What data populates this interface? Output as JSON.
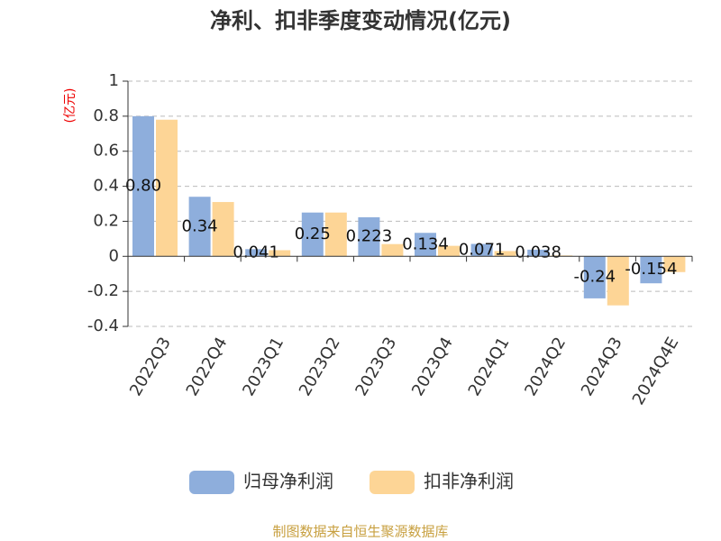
{
  "chart_data": {
    "type": "bar",
    "title": "净利、扣非季度变动情况(亿元)",
    "y_label": "(亿元)",
    "source": "制图数据来自恒生聚源数据库",
    "categories": [
      "2022Q3",
      "2022Q4",
      "2023Q1",
      "2023Q2",
      "2023Q3",
      "2023Q4",
      "2024Q1",
      "2024Q2",
      "2024Q3",
      "2024Q4E"
    ],
    "series": [
      {
        "name": "归母净利润",
        "color": "#8eaedc",
        "values": [
          0.8,
          0.34,
          0.041,
          0.25,
          0.223,
          0.134,
          0.071,
          0.038,
          -0.24,
          -0.154
        ],
        "value_labels": [
          "0.80",
          "0.34",
          "0.041",
          "0.25",
          "0.223",
          "0.134",
          "0.071",
          "0.038",
          "-0.24",
          "-0.154"
        ]
      },
      {
        "name": "扣非净利润",
        "color": "#fdd596",
        "values": [
          0.78,
          0.31,
          0.035,
          0.25,
          0.07,
          0.06,
          0.03,
          0.005,
          -0.28,
          -0.09
        ]
      }
    ],
    "ylim": [
      -0.4,
      1
    ],
    "yticks": [
      -0.4,
      -0.2,
      0,
      0.2,
      0.4,
      0.6,
      0.8,
      1
    ],
    "grid": true
  }
}
